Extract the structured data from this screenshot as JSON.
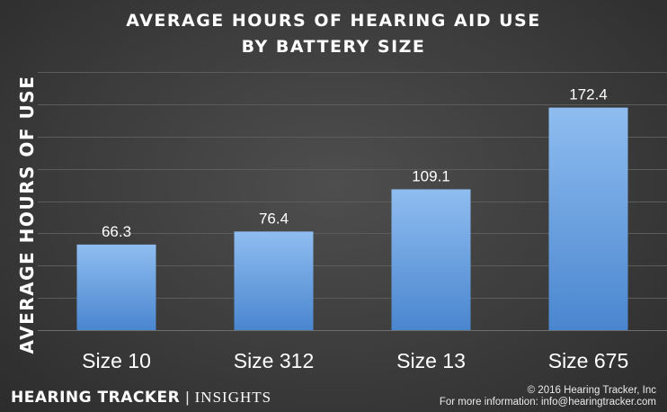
{
  "chart_data": {
    "type": "bar",
    "title": "AVERAGE HOURS OF HEARING AID USE",
    "subtitle": "BY BATTERY SIZE",
    "ylabel": "AVERAGE HOURS OF USE",
    "xlabel": "",
    "categories": [
      "Size 10",
      "Size 312",
      "Size 13",
      "Size 675"
    ],
    "values": [
      66.3,
      76.4,
      109.1,
      172.4
    ],
    "value_labels": [
      "66.3",
      "76.4",
      "109.1",
      "172.4"
    ],
    "ylim": [
      0,
      200
    ],
    "grid": true,
    "legend": "none",
    "colors": {
      "bar_top": "#8fbdf0",
      "bar_bottom": "#4a86cf",
      "grid": "#5c5c5c",
      "axis": "#6e6e6e",
      "text": "#ffffff"
    }
  },
  "footer": {
    "brand_name": "HEARING TRACKER",
    "brand_separator": "|",
    "brand_section": "INSIGHTS",
    "copyright": "© 2016 Hearing Tracker, Inc",
    "contact": "For more information: info@hearingtracker.com"
  }
}
